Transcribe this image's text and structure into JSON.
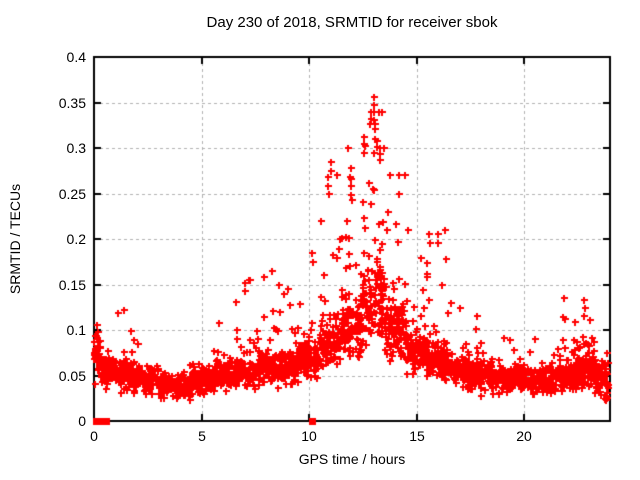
{
  "chart_data": {
    "type": "scatter",
    "title": "Day 230 of 2018, SRMTID for receiver sbok",
    "xlabel": "GPS time / hours",
    "ylabel": "SRMTID / TECUs",
    "xlim": [
      0,
      24
    ],
    "ylim": [
      0,
      0.4
    ],
    "xticks": [
      0,
      5,
      10,
      15,
      20
    ],
    "xtick_labels": [
      "0",
      "5",
      "10",
      "15",
      "20"
    ],
    "yticks": [
      0,
      0.05,
      0.1,
      0.15,
      0.2,
      0.25,
      0.3,
      0.35,
      0.4
    ],
    "ytick_labels": [
      "0",
      "0.05",
      "0.1",
      "0.15",
      "0.2",
      "0.25",
      "0.3",
      "0.35",
      "0.4"
    ],
    "grid": true,
    "grid_style": "dashed",
    "grid_color": "#b0b0b0",
    "axis_color": "#000000",
    "series_name": "SRMTID",
    "marker": {
      "shape": "plus",
      "color": "#ff0000",
      "size": 7,
      "thickness": 2
    },
    "zero_marker": {
      "shape": "filled-square",
      "color": "#ff0000",
      "size": 7
    },
    "seed": 20180230,
    "profile_keys": [
      "x_start",
      "x_end",
      "count",
      "base",
      "spread",
      "tail_prob",
      "tail_scale",
      "y_max"
    ],
    "density_profile": [
      [
        0.0,
        0.35,
        40,
        0.07,
        0.025,
        0.1,
        0.01,
        0.105
      ],
      [
        0.35,
        1.0,
        60,
        0.055,
        0.02,
        0.1,
        0.015,
        0.12
      ],
      [
        1.0,
        1.8,
        80,
        0.05,
        0.018,
        0.12,
        0.02,
        0.125
      ],
      [
        1.8,
        3.0,
        110,
        0.045,
        0.016,
        0.08,
        0.012,
        0.09
      ],
      [
        3.0,
        4.5,
        140,
        0.038,
        0.015,
        0.06,
        0.01,
        0.08
      ],
      [
        4.5,
        5.5,
        100,
        0.045,
        0.016,
        0.08,
        0.012,
        0.09
      ],
      [
        5.5,
        6.5,
        100,
        0.05,
        0.018,
        0.1,
        0.02,
        0.13
      ],
      [
        6.5,
        7.5,
        100,
        0.055,
        0.02,
        0.12,
        0.03,
        0.155
      ],
      [
        7.5,
        8.5,
        100,
        0.06,
        0.022,
        0.12,
        0.03,
        0.165
      ],
      [
        8.5,
        9.5,
        100,
        0.06,
        0.022,
        0.12,
        0.025,
        0.15
      ],
      [
        9.5,
        10.5,
        100,
        0.07,
        0.025,
        0.15,
        0.035,
        0.19
      ],
      [
        10.5,
        11.5,
        110,
        0.085,
        0.03,
        0.2,
        0.055,
        0.275
      ],
      [
        11.5,
        12.5,
        110,
        0.1,
        0.035,
        0.25,
        0.06,
        0.3
      ],
      [
        12.5,
        13.5,
        120,
        0.13,
        0.05,
        0.3,
        0.07,
        0.34
      ],
      [
        13.5,
        14.5,
        110,
        0.1,
        0.035,
        0.25,
        0.055,
        0.27
      ],
      [
        14.5,
        15.5,
        100,
        0.075,
        0.028,
        0.18,
        0.045,
        0.22
      ],
      [
        15.5,
        16.5,
        100,
        0.065,
        0.025,
        0.15,
        0.04,
        0.21
      ],
      [
        16.5,
        17.5,
        100,
        0.055,
        0.02,
        0.12,
        0.025,
        0.13
      ],
      [
        17.5,
        18.5,
        100,
        0.05,
        0.02,
        0.1,
        0.02,
        0.115
      ],
      [
        18.5,
        20.0,
        140,
        0.048,
        0.018,
        0.08,
        0.015,
        0.1
      ],
      [
        20.0,
        21.5,
        140,
        0.045,
        0.016,
        0.08,
        0.012,
        0.09
      ],
      [
        21.5,
        22.5,
        100,
        0.05,
        0.02,
        0.12,
        0.03,
        0.135
      ],
      [
        22.5,
        23.3,
        90,
        0.055,
        0.022,
        0.12,
        0.025,
        0.135
      ],
      [
        23.3,
        23.9,
        60,
        0.045,
        0.025,
        0.08,
        0.015,
        0.1
      ]
    ],
    "outliers": [
      [
        13.02,
        0.356
      ],
      [
        13.02,
        0.347
      ],
      [
        13.03,
        0.34
      ],
      [
        13.0,
        0.331
      ],
      [
        13.05,
        0.326
      ],
      [
        13.08,
        0.321
      ],
      [
        12.82,
        0.326
      ],
      [
        13.15,
        0.308
      ],
      [
        13.17,
        0.301
      ],
      [
        12.6,
        0.302
      ],
      [
        12.58,
        0.295
      ],
      [
        13.3,
        0.3
      ],
      [
        13.32,
        0.293
      ],
      [
        13.28,
        0.287
      ],
      [
        13.5,
        0.3
      ],
      [
        11.0,
        0.285
      ],
      [
        11.02,
        0.275
      ],
      [
        10.9,
        0.268
      ],
      [
        10.88,
        0.258
      ],
      [
        10.92,
        0.25
      ],
      [
        11.95,
        0.278
      ],
      [
        11.93,
        0.268
      ],
      [
        11.97,
        0.258
      ],
      [
        11.95,
        0.248
      ],
      [
        11.32,
        0.27
      ],
      [
        14.2,
        0.25
      ],
      [
        14.6,
        0.21
      ],
      [
        15.6,
        0.205
      ],
      [
        15.62,
        0.196
      ],
      [
        16.0,
        0.205
      ],
      [
        16.02,
        0.196
      ],
      [
        16.2,
        0.15
      ],
      [
        10.15,
        0.185
      ],
      [
        10.17,
        0.175
      ],
      [
        9.0,
        0.145
      ],
      [
        8.3,
        0.165
      ],
      [
        7.9,
        0.158
      ],
      [
        7.0,
        0.152
      ],
      [
        7.02,
        0.143
      ],
      [
        6.6,
        0.131
      ],
      [
        17.0,
        0.124
      ],
      [
        22.8,
        0.133
      ],
      [
        22.82,
        0.124
      ],
      [
        22.78,
        0.115
      ],
      [
        1.4,
        0.122
      ],
      [
        0.15,
        0.105
      ],
      [
        0.17,
        0.098
      ],
      [
        0.12,
        0.091
      ]
    ],
    "zero_points": [
      0.1,
      0.38,
      0.55,
      10.12
    ]
  }
}
